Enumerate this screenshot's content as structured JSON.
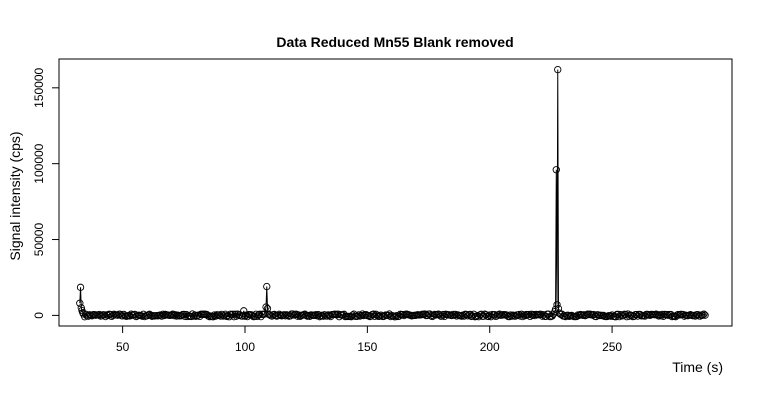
{
  "chart_data": {
    "type": "scatter",
    "title": "Data Reduced Mn55 Blank removed",
    "xlabel": "Time (s)",
    "ylabel": "Signal intensity (cps)",
    "xlim": [
      24,
      299
    ],
    "ylim": [
      -7000,
      169000
    ],
    "xticks": [
      50,
      100,
      150,
      200,
      250
    ],
    "yticks": [
      0,
      50000,
      100000,
      150000
    ],
    "grid": false,
    "legend": "none",
    "style": "points-and-lines",
    "baseline": {
      "x_start": 33.5,
      "x_end": 288,
      "step": 0.5,
      "value": 0,
      "noise": 900
    },
    "points": [
      {
        "x": 32.5,
        "y": 8000
      },
      {
        "x": 32.8,
        "y": 18500
      },
      {
        "x": 33.1,
        "y": 5000
      },
      {
        "x": 33.4,
        "y": 3200
      },
      {
        "x": 33.7,
        "y": 1800
      },
      {
        "x": 34.0,
        "y": 900
      },
      {
        "x": 99.5,
        "y": 3000
      },
      {
        "x": 108.6,
        "y": 5500
      },
      {
        "x": 108.9,
        "y": 19000
      },
      {
        "x": 109.2,
        "y": 4500
      },
      {
        "x": 226.6,
        "y": 2500
      },
      {
        "x": 226.9,
        "y": 4000
      },
      {
        "x": 227.2,
        "y": 96000
      },
      {
        "x": 227.5,
        "y": 7000
      },
      {
        "x": 227.8,
        "y": 162000
      },
      {
        "x": 228.1,
        "y": 4500
      },
      {
        "x": 228.4,
        "y": 1500
      }
    ]
  }
}
